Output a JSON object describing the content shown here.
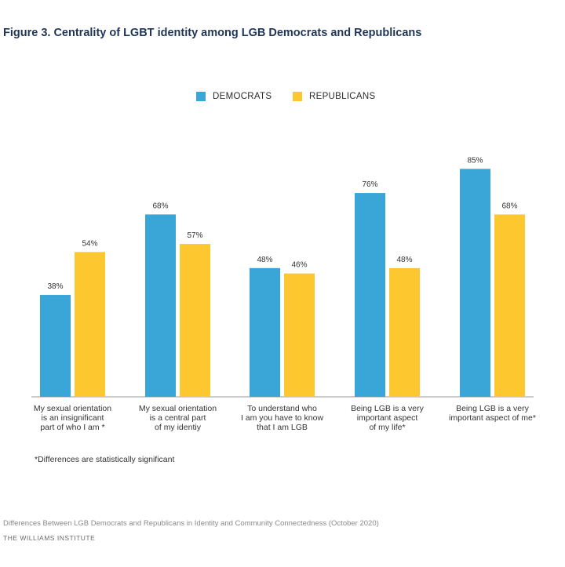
{
  "chart_data": {
    "type": "bar",
    "title": "Figure 3. Centrality of LGBT identity among LGB Democrats and Republicans",
    "categories": [
      [
        "My sexual orientation",
        "is an insignificant",
        "part of who I am *"
      ],
      [
        "My sexual orientation",
        "is a central part",
        "of my identiy"
      ],
      [
        "To understand who",
        "I am you have to know",
        "that I am LGB"
      ],
      [
        "Being LGB is a very",
        "important aspect",
        "of my life*"
      ],
      [
        "Being LGB is a very",
        "important aspect of me*"
      ]
    ],
    "series": [
      {
        "name": "DEMOCRATS",
        "color": "#3aa6d8",
        "values": [
          38,
          68,
          48,
          76,
          85
        ],
        "labels": [
          "38%",
          "68%",
          "48%",
          "76%",
          "85%"
        ]
      },
      {
        "name": "REPUBLICANS",
        "color": "#fdc82f",
        "values": [
          54,
          57,
          46,
          48,
          68
        ],
        "labels": [
          "54%",
          "57%",
          "46%",
          "48%",
          "68%"
        ]
      }
    ],
    "ylim": [
      0,
      100
    ],
    "grid": false,
    "legend": "top-center",
    "xlabel": "",
    "ylabel": ""
  },
  "footnote": "*Differences are statistically significant",
  "source": "Differences Between LGB Democrats and Republicans in Identity and Community Connectedness (October 2020)",
  "org": "THE WILLIAMS INSTITUTE"
}
